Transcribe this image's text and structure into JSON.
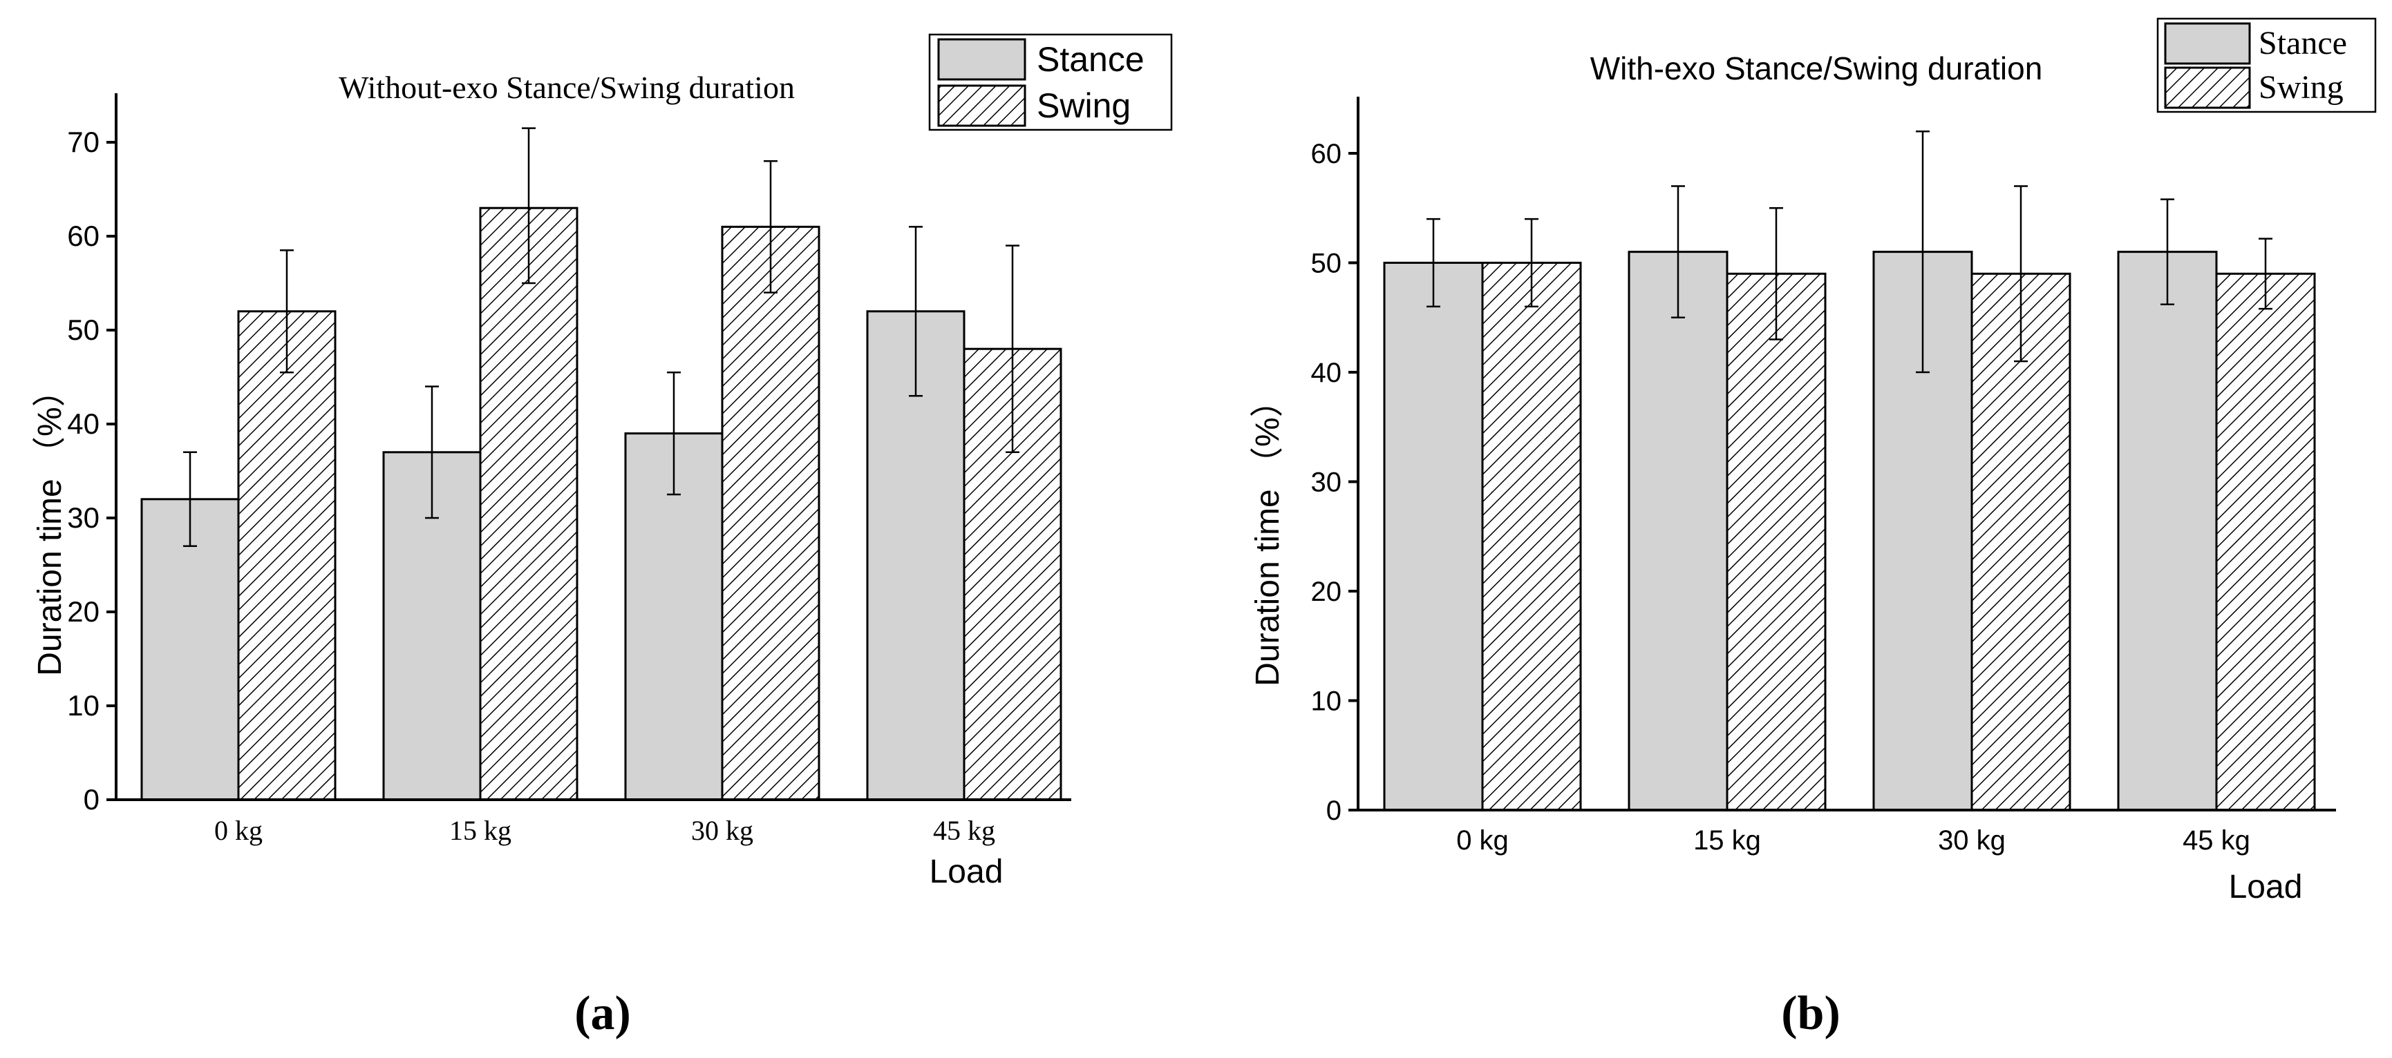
{
  "chart_data": [
    {
      "type": "bar",
      "title": "Without-exo Stance/Swing duration",
      "xlabel": "Load",
      "ylabel": "Duration time （%）",
      "categories": [
        "0 kg",
        "15 kg",
        "30 kg",
        "45 kg"
      ],
      "yticks": [
        "0",
        "10",
        "20",
        "30",
        "40",
        "50",
        "60",
        "70"
      ],
      "ylim": [
        0,
        75
      ],
      "series": [
        {
          "name": "Stance",
          "values": [
            32,
            37,
            39,
            52
          ],
          "err_low": [
            27,
            30,
            32.5,
            43
          ],
          "err_high": [
            37,
            44,
            45.5,
            61
          ]
        },
        {
          "name": "Swing",
          "values": [
            52,
            63,
            61,
            48
          ],
          "err_low": [
            45.5,
            55,
            54,
            37
          ],
          "err_high": [
            58.5,
            71.5,
            68,
            59
          ]
        }
      ],
      "legend": [
        "Stance",
        "Swing"
      ],
      "panel_label": "(a)"
    },
    {
      "type": "bar",
      "title": "With-exo Stance/Swing duration",
      "xlabel": "Load",
      "ylabel": "Duration time （%）",
      "categories": [
        "0 kg",
        "15 kg",
        "30 kg",
        "45 kg"
      ],
      "yticks": [
        "0",
        "10",
        "20",
        "30",
        "40",
        "50",
        "60"
      ],
      "ylim": [
        0,
        65
      ],
      "series": [
        {
          "name": "Stance",
          "values": [
            50,
            51,
            51,
            51
          ],
          "err_low": [
            46,
            45,
            40,
            46.2
          ],
          "err_high": [
            54,
            57,
            62,
            55.8
          ]
        },
        {
          "name": "Swing",
          "values": [
            50,
            49,
            49,
            49
          ],
          "err_low": [
            46,
            43,
            41,
            45.8
          ],
          "err_high": [
            54,
            55,
            57,
            52.2
          ]
        }
      ],
      "legend": [
        "Stance",
        "Swing"
      ],
      "panel_label": "(b)"
    }
  ],
  "colors": {
    "stance_fill": "#d3d3d3",
    "swing_hatch": "#000000",
    "background": "#ffffff"
  }
}
